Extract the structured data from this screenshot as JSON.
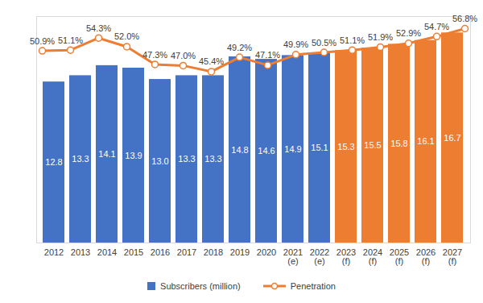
{
  "chart_data": {
    "type": "bar",
    "categories": [
      "2012",
      "2013",
      "2014",
      "2015",
      "2016",
      "2017",
      "2018",
      "2019",
      "2020",
      "2021\n(e)",
      "2022\n(e)",
      "2023\n(f)",
      "2024\n(f)",
      "2025\n(f)",
      "2026\n(f)",
      "2027\n(f)"
    ],
    "series": [
      {
        "name": "Subscribers (million)",
        "type": "bar",
        "color": "#4472C4",
        "colors": [
          "#4472C4",
          "#4472C4",
          "#4472C4",
          "#4472C4",
          "#4472C4",
          "#4472C4",
          "#4472C4",
          "#4472C4",
          "#4472C4",
          "#4472C4",
          "#4472C4",
          "#ED7D31",
          "#ED7D31",
          "#ED7D31",
          "#ED7D31",
          "#ED7D31"
        ],
        "values": [
          12.8,
          13.3,
          14.1,
          13.9,
          13.0,
          13.3,
          13.3,
          14.8,
          14.6,
          14.9,
          15.1,
          15.3,
          15.5,
          15.8,
          16.1,
          16.7
        ],
        "value_labels": [
          "12.8",
          "13.3",
          "14.1",
          "13.9",
          "13.0",
          "13.3",
          "13.3",
          "14.8",
          "14.6",
          "14.9",
          "15.1",
          "15.3",
          "15.5",
          "15.8",
          "16.1",
          "16.7"
        ]
      },
      {
        "name": "Penetration",
        "type": "line",
        "axis": "y2",
        "color": "#ED7D31",
        "marker": "circle",
        "values": [
          50.9,
          51.1,
          54.3,
          52.0,
          47.3,
          47.0,
          45.4,
          49.2,
          47.1,
          49.9,
          50.5,
          51.1,
          51.9,
          52.9,
          54.7,
          56.8
        ],
        "value_labels": [
          "50.9%",
          "51.1%",
          "54.3%",
          "52.0%",
          "47.3%",
          "47.0%",
          "45.4%",
          "49.2%",
          "47.1%",
          "49.9%",
          "50.5%",
          "51.1%",
          "51.9%",
          "52.9%",
          "54.7%",
          "56.8%"
        ]
      }
    ],
    "ylim": [
      0,
      18
    ],
    "y2lim": [
      0,
      60
    ],
    "data_labels": true,
    "tick_labels": "x",
    "legend": "bottom"
  }
}
